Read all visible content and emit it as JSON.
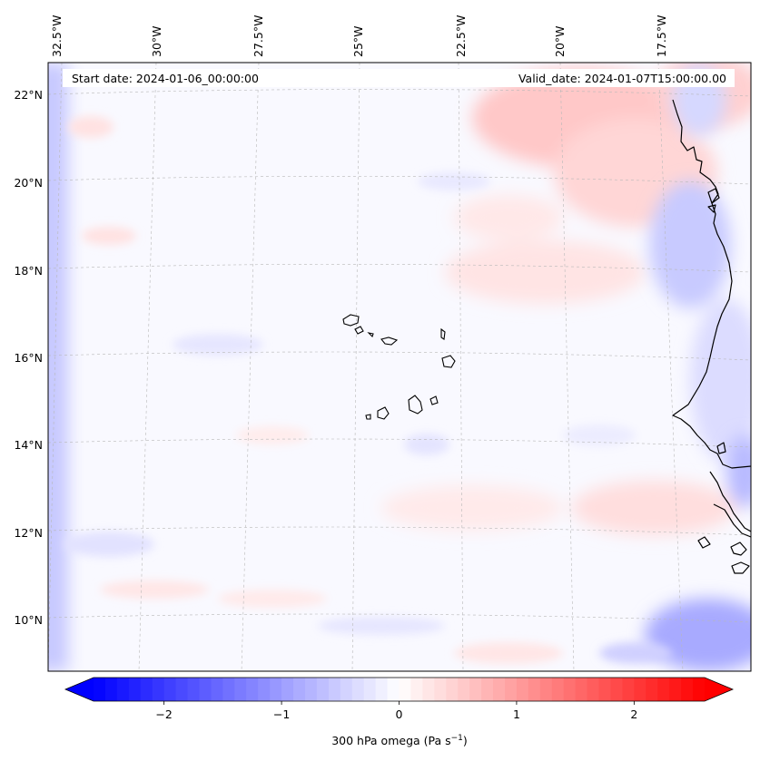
{
  "map": {
    "header_left": "Start date: 2024-01-06_00:00:00",
    "header_right": "Valid_date: 2024-01-07T15:00:00.00",
    "lon_labels": [
      "32.5°W",
      "30°W",
      "27.5°W",
      "25°W",
      "22.5°W",
      "20°W",
      "17.5°W"
    ],
    "lat_labels": [
      "22°N",
      "20°N",
      "18°N",
      "16°N",
      "14°N",
      "12°N",
      "10°N"
    ],
    "extent": {
      "lon_min": -33.2,
      "lon_max": -15.2,
      "lat_min": 8.9,
      "lat_max": 22.8
    }
  },
  "colorbar": {
    "label_main": "300 hPa omega (Pa s",
    "label_exp": "−1",
    "label_close": ")",
    "ticks": [
      "−2",
      "−1",
      "0",
      "1",
      "2"
    ],
    "tick_values": [
      -2,
      -1,
      0,
      1,
      2
    ],
    "vmin": -2.6,
    "vmax": 2.6,
    "colors": {
      "min": "#0000ff",
      "mid": "#ffffff",
      "max": "#ff0000"
    }
  }
}
